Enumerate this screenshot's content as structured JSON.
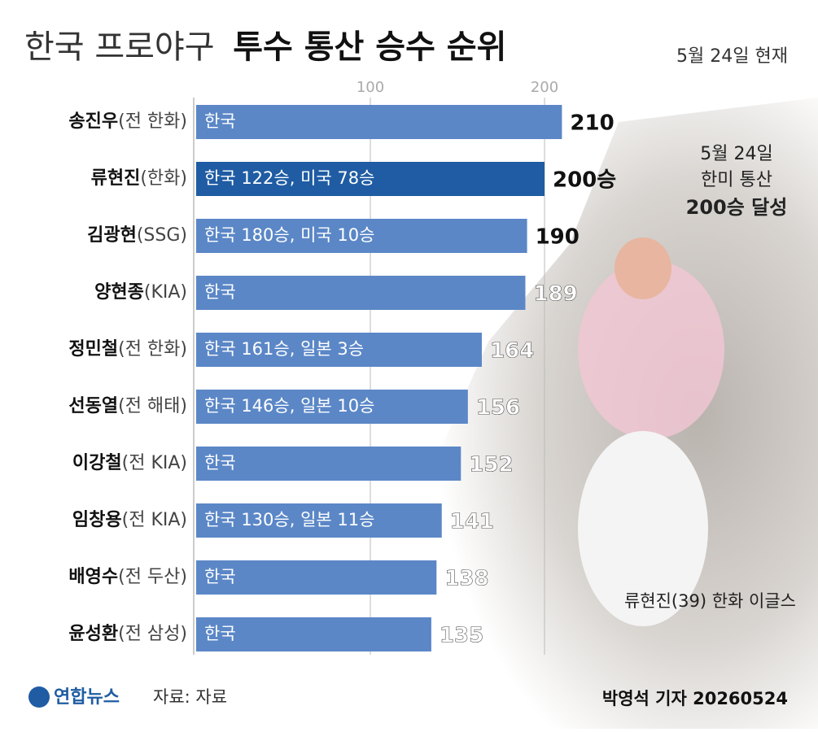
{
  "chart_data": {
    "type": "bar",
    "title_light": "한국 프로야구",
    "title_bold": "투수 통산 승수 순위",
    "date_note": "5월 24일 현재",
    "categories": [
      "송진우",
      "류현진",
      "김광현",
      "양현종",
      "정민철",
      "선동열",
      "이강철",
      "임창용",
      "배영수",
      "윤성환"
    ],
    "teams": [
      "(전 한화)",
      "(한화)",
      "(SSG)",
      "(KIA)",
      "(전 한화)",
      "(전 해태)",
      "(전 KIA)",
      "(전 KIA)",
      "(전 두산)",
      "(전 삼성)"
    ],
    "values": [
      210,
      200,
      190,
      189,
      164,
      156,
      152,
      141,
      138,
      135
    ],
    "value_labels": [
      "210",
      "200승",
      "190",
      "189",
      "164",
      "156",
      "152",
      "141",
      "138",
      "135"
    ],
    "bar_labels": [
      "한국",
      "한국 122승, 미국 78승",
      "한국 180승, 미국 10승",
      "한국",
      "한국 161승, 일본 3승",
      "한국 146승, 일본 10승",
      "한국",
      "한국 130승, 일본 11승",
      "한국",
      "한국"
    ],
    "colors": [
      "#5b87c7",
      "#1f5ca3",
      "#5b87c7",
      "#5b87c7",
      "#5b87c7",
      "#5b87c7",
      "#5b87c7",
      "#5b87c7",
      "#5b87c7",
      "#5b87c7"
    ],
    "xlim": [
      0,
      220
    ],
    "xticks": [
      100,
      200
    ],
    "grid": true,
    "annotation": [
      "5월 24일",
      "한미 통산",
      "200승 달성"
    ],
    "photo_caption": "류현진(39) 한화 이글스",
    "logo": "연합뉴스",
    "source": "자료: 자료",
    "credit": "박영석 기자 20260524"
  }
}
